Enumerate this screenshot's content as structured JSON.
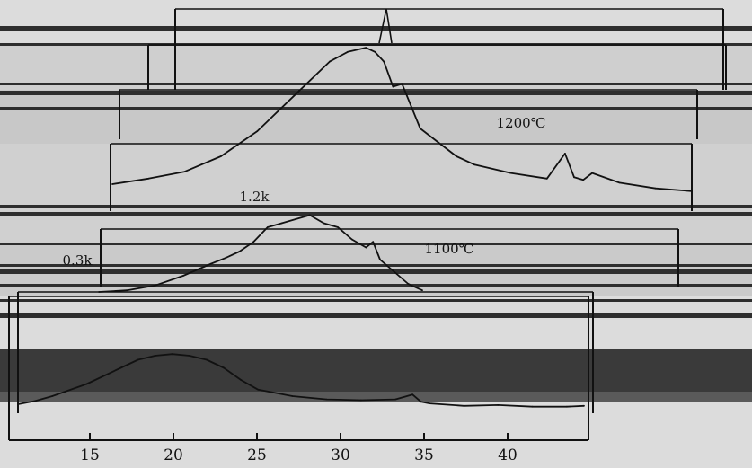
{
  "chart_data": {
    "type": "line",
    "title": "",
    "xlabel": "",
    "ylabel": "",
    "xlim": [
      12,
      46
    ],
    "x_ticks": [
      15,
      20,
      25,
      30,
      35,
      40
    ],
    "grid": false,
    "annotations": [
      "1200℃",
      "1100℃",
      "1.2k",
      "0.3k"
    ],
    "series": [
      {
        "label": "1200℃",
        "x": [
          16,
          18,
          20,
          22,
          24,
          26,
          28,
          29,
          30,
          30.5,
          31,
          31.5,
          32,
          33,
          34,
          35,
          36,
          38,
          40,
          41,
          41.5,
          42,
          42.5,
          44,
          46,
          48
        ],
        "y": [
          0.0,
          0.04,
          0.09,
          0.2,
          0.38,
          0.63,
          0.88,
          0.95,
          0.98,
          0.95,
          0.88,
          0.7,
          0.72,
          0.4,
          0.3,
          0.2,
          0.14,
          0.08,
          0.04,
          0.22,
          0.05,
          0.03,
          0.08,
          0.01,
          -0.03,
          -0.05
        ]
      },
      {
        "label": "1100℃",
        "x": [
          12,
          14,
          16,
          18,
          20,
          21,
          22,
          23,
          24,
          25,
          26,
          27,
          28,
          29,
          30,
          31,
          31.5,
          32,
          33,
          34,
          35
        ],
        "y": [
          0.0,
          0.02,
          0.08,
          0.2,
          0.35,
          0.42,
          0.5,
          0.62,
          0.8,
          0.85,
          0.9,
          0.95,
          0.85,
          0.8,
          0.65,
          0.55,
          0.62,
          0.4,
          0.25,
          0.1,
          0.02
        ]
      },
      {
        "label": "",
        "x": [
          12,
          13,
          14,
          16,
          18,
          19,
          20,
          21,
          22,
          23,
          24,
          25,
          26,
          28,
          30,
          32,
          34,
          35,
          35.5,
          36,
          38,
          40,
          42,
          44,
          45
        ],
        "y": [
          0.0,
          0.04,
          0.1,
          0.25,
          0.45,
          0.55,
          0.6,
          0.62,
          0.6,
          0.55,
          0.45,
          0.3,
          0.18,
          0.1,
          0.06,
          0.05,
          0.06,
          0.12,
          0.03,
          0.01,
          -0.02,
          -0.01,
          -0.03,
          -0.03,
          -0.02
        ]
      }
    ]
  }
}
